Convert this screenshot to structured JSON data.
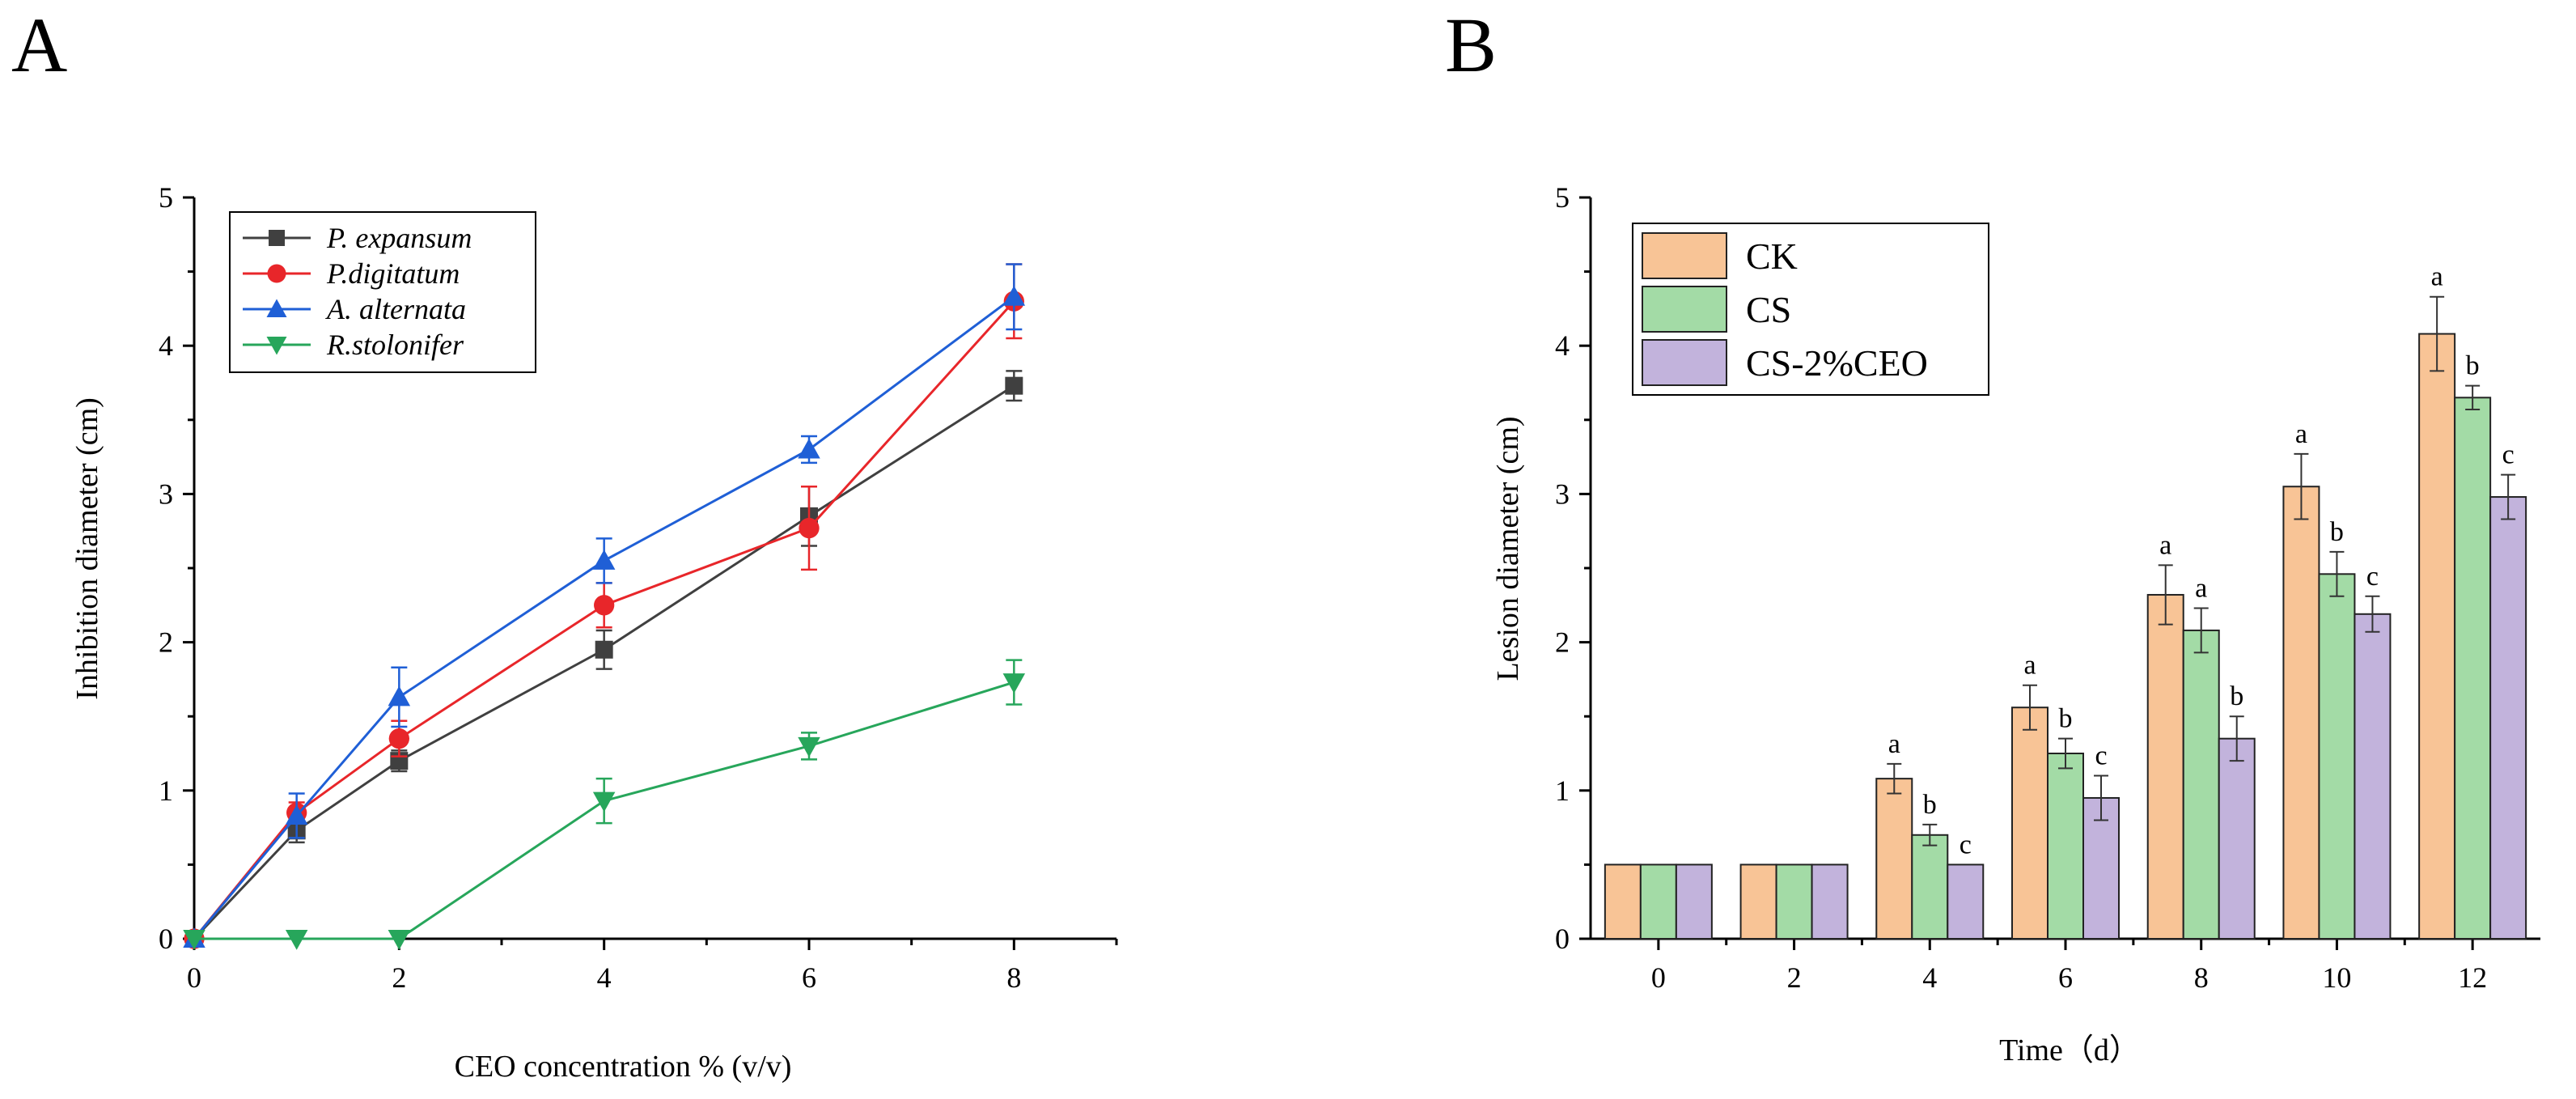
{
  "chart_data": [
    {
      "panel": "A",
      "type": "line",
      "xlabel": "CEO concentration % (v/v)",
      "ylabel": "Inhibition diameter (cm)",
      "xlim": [
        0,
        9
      ],
      "ylim": [
        0,
        5
      ],
      "xticks": [
        "0",
        "2",
        "4",
        "6",
        "8"
      ],
      "yticks": [
        "0",
        "1",
        "2",
        "3",
        "4",
        "5"
      ],
      "legend_position": "top-left",
      "x": [
        0,
        1,
        2,
        4,
        6,
        8
      ],
      "series": [
        {
          "name": "P. expansum",
          "color": "#404040",
          "marker": "square",
          "values": [
            0,
            0.73,
            1.2,
            1.95,
            2.85,
            3.73
          ],
          "errors": [
            0,
            0.08,
            0.07,
            0.13,
            0.2,
            0.1
          ]
        },
        {
          "name": "P.digitatum",
          "color": "#e8262a",
          "marker": "circle",
          "values": [
            0,
            0.85,
            1.35,
            2.25,
            2.77,
            4.3
          ],
          "errors": [
            0,
            0.07,
            0.12,
            0.15,
            0.28,
            0.25
          ]
        },
        {
          "name": "A. alternata",
          "color": "#1f5fd6",
          "marker": "triangle-up",
          "values": [
            0,
            0.83,
            1.63,
            2.55,
            3.3,
            4.33
          ],
          "errors": [
            0,
            0.15,
            0.2,
            0.15,
            0.09,
            0.22
          ]
        },
        {
          "name": "R.stolonifer",
          "color": "#27a65b",
          "marker": "triangle-down",
          "values": [
            0,
            0,
            0,
            0.93,
            1.3,
            1.73
          ],
          "errors": [
            0,
            0,
            0,
            0.15,
            0.09,
            0.15
          ]
        }
      ]
    },
    {
      "panel": "B",
      "type": "bar",
      "xlabel": "Time（d）",
      "ylabel": "Lesion diameter (cm)",
      "ylim": [
        0,
        5
      ],
      "yticks": [
        "0",
        "1",
        "2",
        "3",
        "4",
        "5"
      ],
      "legend_position": "top-left",
      "categories": [
        "0",
        "2",
        "4",
        "6",
        "8",
        "10",
        "12"
      ],
      "series": [
        {
          "name": "CK",
          "color": "#f8c496",
          "values": [
            0.5,
            0.5,
            1.08,
            1.56,
            2.32,
            3.05,
            4.08
          ],
          "errors": [
            0,
            0,
            0.1,
            0.15,
            0.2,
            0.22,
            0.25
          ],
          "labels": [
            "",
            "",
            "a",
            "a",
            "a",
            "a",
            "a"
          ]
        },
        {
          "name": "CS",
          "color": "#a3dba6",
          "values": [
            0.5,
            0.5,
            0.7,
            1.25,
            2.08,
            2.46,
            3.65
          ],
          "errors": [
            0,
            0,
            0.07,
            0.1,
            0.15,
            0.15,
            0.08
          ],
          "labels": [
            "",
            "",
            "b",
            "b",
            "a",
            "b",
            "b"
          ]
        },
        {
          "name": "CS-2%CEO",
          "color": "#c2b3dc",
          "values": [
            0.5,
            0.5,
            0.5,
            0.95,
            1.35,
            2.19,
            2.98
          ],
          "errors": [
            0,
            0,
            0,
            0.15,
            0.15,
            0.12,
            0.15
          ],
          "labels": [
            "",
            "",
            "c",
            "c",
            "b",
            "c",
            "c"
          ]
        }
      ]
    }
  ]
}
